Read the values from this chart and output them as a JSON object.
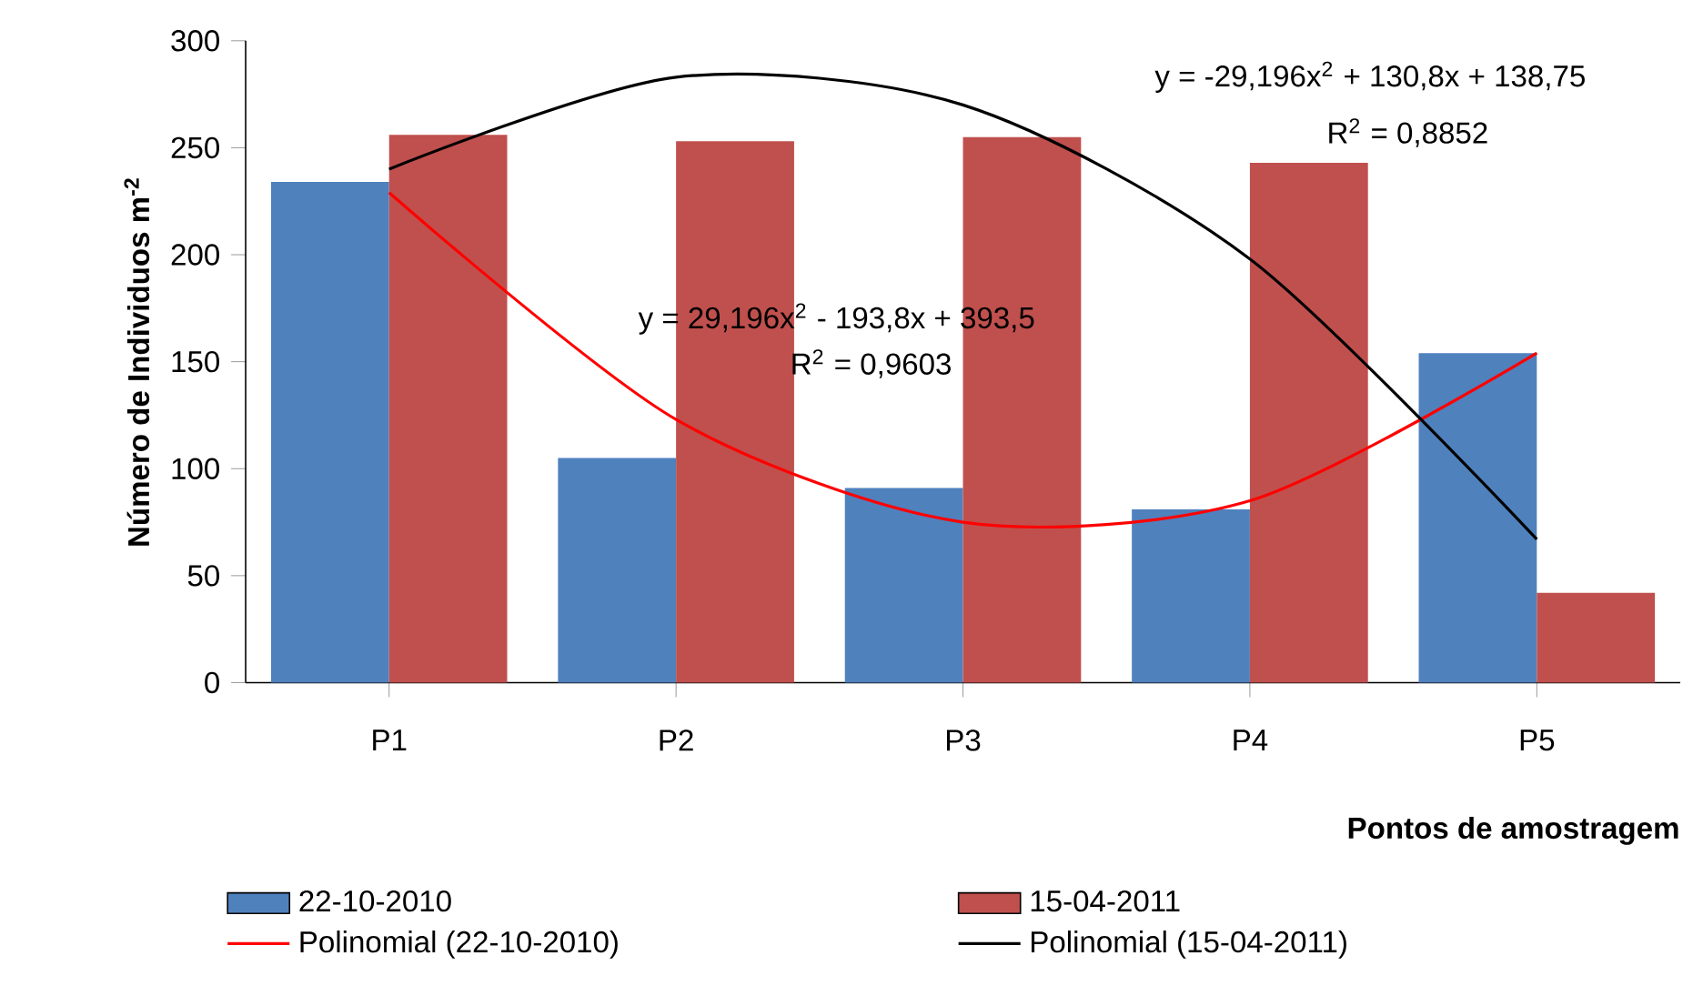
{
  "chart_data": {
    "type": "bar",
    "categories": [
      "P1",
      "P2",
      "P3",
      "P4",
      "P5"
    ],
    "xlabel": "Pontos de amostragem",
    "ylabel": "**Número de Individuos  m$^{-2}$**",
    "ylim": [
      0,
      300
    ],
    "yticks": [
      0,
      50,
      100,
      150,
      200,
      250,
      300
    ],
    "grid": false,
    "legend": "bottom",
    "marker": "none",
    "series": [
      {
        "name": "22-10-2010",
        "color": "#4f81bd",
        "values": [
          234,
          105,
          91,
          81,
          154
        ]
      },
      {
        "name": "15-04-2011",
        "color": "#c0504d",
        "values": [
          256,
          253,
          255,
          243,
          42
        ]
      },
      {
        "name": "Polinomial (22-10-2010)",
        "type": "line",
        "color": "#ff0000",
        "values": [
          229,
          123,
          75,
          85,
          154
        ]
      },
      {
        "name": "Polinomial (15-04-2011)",
        "type": "line",
        "color": "#000000",
        "values": [
          240,
          283,
          270,
          198,
          67
        ]
      }
    ],
    "annotations": [
      "y = -29,196x$^{2}$ + 130,8x + 138,75",
      "R$^{2}$ = 0,8852",
      "y = 29,196x$^{2}$ - 193,8x + 393,5",
      "R$^{2}$ = 0,9603"
    ]
  }
}
